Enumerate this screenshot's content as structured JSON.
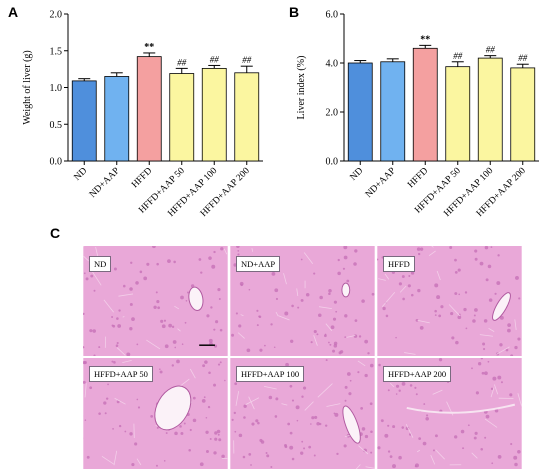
{
  "panels": {
    "a_letter": "A",
    "b_letter": "B",
    "c_letter": "C"
  },
  "chart_data": [
    {
      "type": "bar",
      "title": "",
      "ylabel": "Weight of liver (g)",
      "xlabel": "",
      "ylim": [
        0.0,
        2.0
      ],
      "yticks": [
        "0.0",
        "0.5",
        "1.0",
        "1.5",
        "2.0"
      ],
      "categories": [
        "ND",
        "ND+AAP",
        "HFFD",
        "HFFD+AAP 50",
        "HFFD+AAP 100",
        "HFFD+AAP 200"
      ],
      "values": [
        1.09,
        1.15,
        1.42,
        1.19,
        1.26,
        1.2
      ],
      "errors": [
        0.03,
        0.05,
        0.05,
        0.07,
        0.04,
        0.09
      ],
      "annotations": [
        "",
        "",
        "**",
        "##",
        "##",
        "##"
      ],
      "colors": [
        "#4f8fdc",
        "#70b2f0",
        "#f4a0a0",
        "#fbf6a0",
        "#fbf6a0",
        "#fbf6a0"
      ]
    },
    {
      "type": "bar",
      "title": "",
      "ylabel": "Liver index (%)",
      "xlabel": "",
      "ylim": [
        0.0,
        6.0
      ],
      "yticks": [
        "0.0",
        "2.0",
        "4.0",
        "6.0"
      ],
      "categories": [
        "ND",
        "ND+AAP",
        "HFFD",
        "HFFD+AAP 50",
        "HFFD+AAP 100",
        "HFFD+AAP 200"
      ],
      "values": [
        4.0,
        4.05,
        4.6,
        3.85,
        4.2,
        3.8
      ],
      "errors": [
        0.1,
        0.12,
        0.12,
        0.2,
        0.1,
        0.15
      ],
      "annotations": [
        "",
        "",
        "**",
        "##",
        "##",
        "##"
      ],
      "colors": [
        "#4f8fdc",
        "#70b2f0",
        "#f4a0a0",
        "#fbf6a0",
        "#fbf6a0",
        "#fbf6a0"
      ]
    }
  ],
  "histology": {
    "labels": [
      "ND",
      "ND+AAP",
      "HFFD",
      "HFFD+AAP 50",
      "HFFD+AAP 100",
      "HFFD+AAP 200"
    ],
    "tissue_color": "#e9a8d8",
    "stain_color": "#c770b8"
  }
}
